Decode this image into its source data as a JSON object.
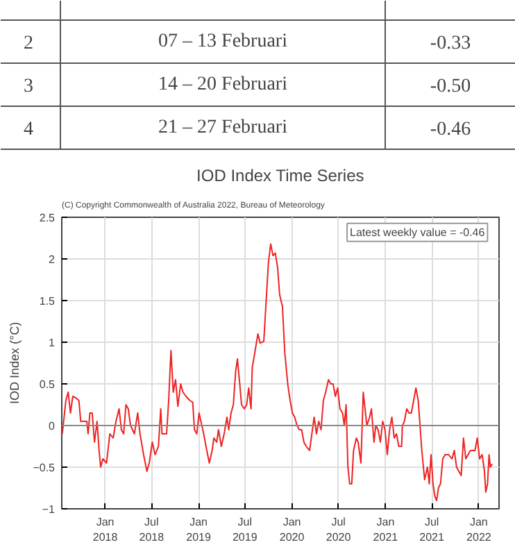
{
  "chart_data": {
    "type": "line",
    "title": "IOD Index Time Series",
    "ylabel": "IOD Index (°C)",
    "annotations": [
      "(C) Copyright Commonwealth of Australia 2022, Bureau of Meteorology",
      "Latest weekly value = -0.46",
      "2",
      "07 – 13 Februari",
      "-0.33",
      "3",
      "14 – 20 Februari",
      "-0.50",
      "4",
      "21 – 27 Februari",
      "-0.46"
    ],
    "xlim": [
      "2017-07-15",
      "2022-03-21"
    ],
    "xticks": [
      {
        "value": "2018-01-01",
        "label": "Jan\n2018"
      },
      {
        "value": "2018-07-01",
        "label": "Jul\n2018"
      },
      {
        "value": "2019-01-01",
        "label": "Jan\n2019"
      },
      {
        "value": "2019-07-01",
        "label": "Jul\n2019"
      },
      {
        "value": "2020-01-01",
        "label": "Jan\n2020"
      },
      {
        "value": "2020-07-01",
        "label": "Jul\n2020"
      },
      {
        "value": "2021-01-01",
        "label": "Jan\n2021"
      },
      {
        "value": "2021-07-01",
        "label": "Jul\n2021"
      },
      {
        "value": "2022-01-01",
        "label": "Jan\n2022"
      }
    ],
    "ylim": [
      -1,
      2.5
    ],
    "yticks": [
      -1,
      -0.5,
      0,
      0.5,
      1,
      1.5,
      2,
      2.5
    ],
    "grid": true,
    "marker": "none",
    "line_style": "solid",
    "ref_lines": [
      {
        "axis": "y",
        "value": 0,
        "color": "#888888"
      }
    ],
    "series": [
      {
        "color": "#ee2222",
        "x": [
          "2017-07-17",
          "2017-07-31",
          "2017-08-09",
          "2017-08-18",
          "2017-08-27",
          "2017-09-09",
          "2017-09-20",
          "2017-09-27",
          "2017-10-12",
          "2017-10-21",
          "2017-10-26",
          "2017-11-02",
          "2017-11-11",
          "2017-11-20",
          "2017-11-30",
          "2017-12-08",
          "2017-12-14",
          "2017-12-23",
          "2018-01-06",
          "2018-01-19",
          "2018-02-01",
          "2018-02-12",
          "2018-02-24",
          "2018-03-05",
          "2018-03-14",
          "2018-03-23",
          "2018-04-01",
          "2018-04-10",
          "2018-04-25",
          "2018-05-08",
          "2018-05-17",
          "2018-05-31",
          "2018-06-13",
          "2018-06-22",
          "2018-07-04",
          "2018-07-15",
          "2018-07-28",
          "2018-08-06",
          "2018-08-11",
          "2018-08-19",
          "2018-08-29",
          "2018-09-06",
          "2018-09-15",
          "2018-09-24",
          "2018-10-03",
          "2018-10-12",
          "2018-10-23",
          "2018-11-01",
          "2018-11-13",
          "2018-11-28",
          "2018-12-09",
          "2018-12-16",
          "2018-12-25",
          "2019-01-03",
          "2019-01-10",
          "2019-01-21",
          "2019-01-30",
          "2019-02-12",
          "2019-02-23",
          "2019-03-02",
          "2019-03-13",
          "2019-03-20",
          "2019-03-31",
          "2019-04-11",
          "2019-04-22",
          "2019-04-29",
          "2019-05-08",
          "2019-05-17",
          "2019-05-26",
          "2019-06-02",
          "2019-06-11",
          "2019-06-18",
          "2019-06-29",
          "2019-07-08",
          "2019-07-16",
          "2019-07-25",
          "2019-07-30",
          "2019-08-06",
          "2019-08-21",
          "2019-08-30",
          "2019-09-13",
          "2019-10-01",
          "2019-10-10",
          "2019-10-19",
          "2019-10-28",
          "2019-11-06",
          "2019-11-14",
          "2019-11-25",
          "2019-12-04",
          "2019-12-16",
          "2019-12-25",
          "2020-01-03",
          "2020-01-12",
          "2020-01-21",
          "2020-01-30",
          "2020-02-08",
          "2020-02-17",
          "2020-02-26",
          "2020-03-10",
          "2020-03-19",
          "2020-03-28",
          "2020-04-06",
          "2020-04-15",
          "2020-04-24",
          "2020-05-03",
          "2020-05-12",
          "2020-05-23",
          "2020-06-01",
          "2020-06-10",
          "2020-06-19",
          "2020-06-28",
          "2020-07-07",
          "2020-07-17",
          "2020-07-24",
          "2020-07-31",
          "2020-08-07",
          "2020-08-14",
          "2020-08-22",
          "2020-08-29",
          "2020-09-09",
          "2020-09-16",
          "2020-09-27",
          "2020-10-06",
          "2020-10-13",
          "2020-10-20",
          "2020-10-31",
          "2020-11-07",
          "2020-11-17",
          "2020-11-24",
          "2020-12-03",
          "2020-12-12",
          "2020-12-21",
          "2020-12-30",
          "2021-01-08",
          "2021-01-17",
          "2021-01-26",
          "2021-02-04",
          "2021-02-13",
          "2021-02-22",
          "2021-03-05",
          "2021-03-08",
          "2021-03-16",
          "2021-03-25",
          "2021-04-03",
          "2021-04-12",
          "2021-04-21",
          "2021-04-30",
          "2021-05-09",
          "2021-05-16",
          "2021-05-23",
          "2021-06-03",
          "2021-06-14",
          "2021-06-21",
          "2021-06-28",
          "2021-07-06",
          "2021-07-13",
          "2021-07-20",
          "2021-07-27",
          "2021-08-04",
          "2021-08-13",
          "2021-08-22",
          "2021-09-05",
          "2021-09-18",
          "2021-09-27",
          "2021-10-06",
          "2021-10-15",
          "2021-10-24",
          "2021-11-02",
          "2021-11-11",
          "2021-11-20",
          "2021-11-29",
          "2021-12-08",
          "2021-12-17",
          "2021-12-26",
          "2022-01-04",
          "2022-01-14",
          "2022-01-23",
          "2022-01-28",
          "2022-02-04",
          "2022-02-10",
          "2022-02-15",
          "2022-02-22"
        ],
        "values": [
          -0.1,
          0.3,
          0.4,
          0.15,
          0.35,
          0.33,
          0.3,
          0.05,
          0.05,
          0.05,
          -0.1,
          0.15,
          0.15,
          -0.2,
          0.05,
          -0.3,
          -0.5,
          -0.4,
          -0.45,
          -0.1,
          -0.15,
          0.05,
          0.2,
          -0.05,
          -0.1,
          0.25,
          0.2,
          0.0,
          -0.1,
          0.15,
          -0.1,
          -0.35,
          -0.55,
          -0.45,
          -0.2,
          -0.35,
          -0.25,
          0.2,
          -0.1,
          -0.1,
          -0.1,
          0.3,
          0.9,
          0.4,
          0.55,
          0.23,
          0.5,
          0.4,
          0.35,
          0.3,
          0.28,
          -0.05,
          -0.1,
          0.15,
          0.05,
          -0.1,
          -0.25,
          -0.45,
          -0.3,
          -0.15,
          -0.2,
          -0.05,
          -0.25,
          -0.1,
          0.1,
          -0.05,
          0.15,
          0.25,
          0.65,
          0.8,
          0.5,
          0.25,
          0.2,
          0.25,
          0.45,
          0.2,
          0.7,
          0.82,
          1.1,
          0.99,
          1.01,
          1.95,
          2.18,
          2.04,
          2.07,
          1.9,
          1.57,
          1.43,
          0.88,
          0.49,
          0.3,
          0.15,
          0.1,
          0.0,
          -0.05,
          -0.05,
          -0.2,
          -0.25,
          -0.3,
          -0.1,
          0.1,
          -0.1,
          0.05,
          -0.05,
          0.3,
          0.4,
          0.55,
          0.5,
          0.5,
          0.35,
          0.45,
          0.2,
          0.15,
          0.0,
          0.25,
          -0.5,
          -0.7,
          -0.7,
          -0.3,
          -0.15,
          -0.2,
          -0.45,
          0.4,
          0.2,
          0.0,
          0.1,
          0.2,
          -0.2,
          0.0,
          -0.05,
          -0.2,
          0.05,
          -0.05,
          -0.35,
          -0.05,
          0.1,
          -0.15,
          -0.1,
          -0.25,
          -0.25,
          0.0,
          0.05,
          0.2,
          0.15,
          0.15,
          0.3,
          0.45,
          0.3,
          0.0,
          -0.3,
          -0.65,
          -0.5,
          -0.7,
          -0.35,
          -0.7,
          -0.85,
          -0.9,
          -0.75,
          -0.7,
          -0.4,
          -0.35,
          -0.35,
          -0.4,
          -0.3,
          -0.5,
          -0.55,
          -0.6,
          -0.15,
          -0.4,
          -0.35,
          -0.3,
          -0.3,
          -0.3,
          -0.15,
          -0.4,
          -0.35,
          -0.55,
          -0.8,
          -0.7,
          -0.35,
          -0.5,
          -0.46
        ]
      }
    ]
  }
}
